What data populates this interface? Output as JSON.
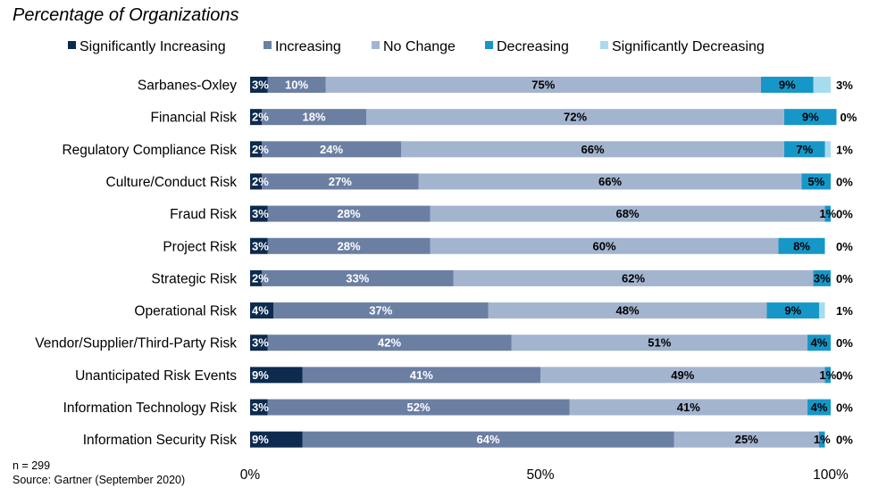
{
  "chart_data": {
    "type": "bar",
    "orientation": "horizontal",
    "stacked": true,
    "title": "Percentage of Organizations",
    "categories": [
      "Sarbanes-Oxley",
      "Financial Risk",
      "Regulatory Compliance Risk",
      "Culture/Conduct Risk",
      "Fraud Risk",
      "Project Risk",
      "Strategic Risk",
      "Operational Risk",
      "Vendor/Supplier/Third-Party Risk",
      "Unanticipated Risk Events",
      "Information Technology Risk",
      "Information Security Risk"
    ],
    "series": [
      {
        "name": "Significantly Increasing",
        "color": "#0d2a4f",
        "label_color": "#ffffff",
        "values": [
          3,
          2,
          2,
          2,
          3,
          3,
          2,
          4,
          3,
          9,
          3,
          9
        ]
      },
      {
        "name": "Increasing",
        "color": "#6b7fa3",
        "label_color": "#ffffff",
        "values": [
          10,
          18,
          24,
          27,
          28,
          28,
          33,
          37,
          42,
          41,
          52,
          64
        ]
      },
      {
        "name": "No Change",
        "color": "#a3b4cf",
        "label_color": "#000000",
        "values": [
          75,
          72,
          66,
          66,
          68,
          60,
          62,
          48,
          51,
          49,
          41,
          25
        ]
      },
      {
        "name": "Decreasing",
        "color": "#1797c8",
        "label_color": "#000000",
        "values": [
          9,
          9,
          7,
          5,
          1,
          8,
          3,
          9,
          4,
          1,
          4,
          1
        ]
      },
      {
        "name": "Significantly Decreasing",
        "color": "#a7dcf0",
        "label_color": "#000000",
        "values": [
          3,
          0,
          1,
          0,
          0,
          0,
          0,
          1,
          0,
          0,
          0,
          0
        ]
      }
    ],
    "xlim": [
      0,
      100
    ],
    "x_ticks": [
      "0%",
      "50%",
      "100%"
    ],
    "legend_position": "top",
    "grid": false,
    "notes": [
      "n = 299",
      "Source: Gartner (September 2020)"
    ]
  }
}
